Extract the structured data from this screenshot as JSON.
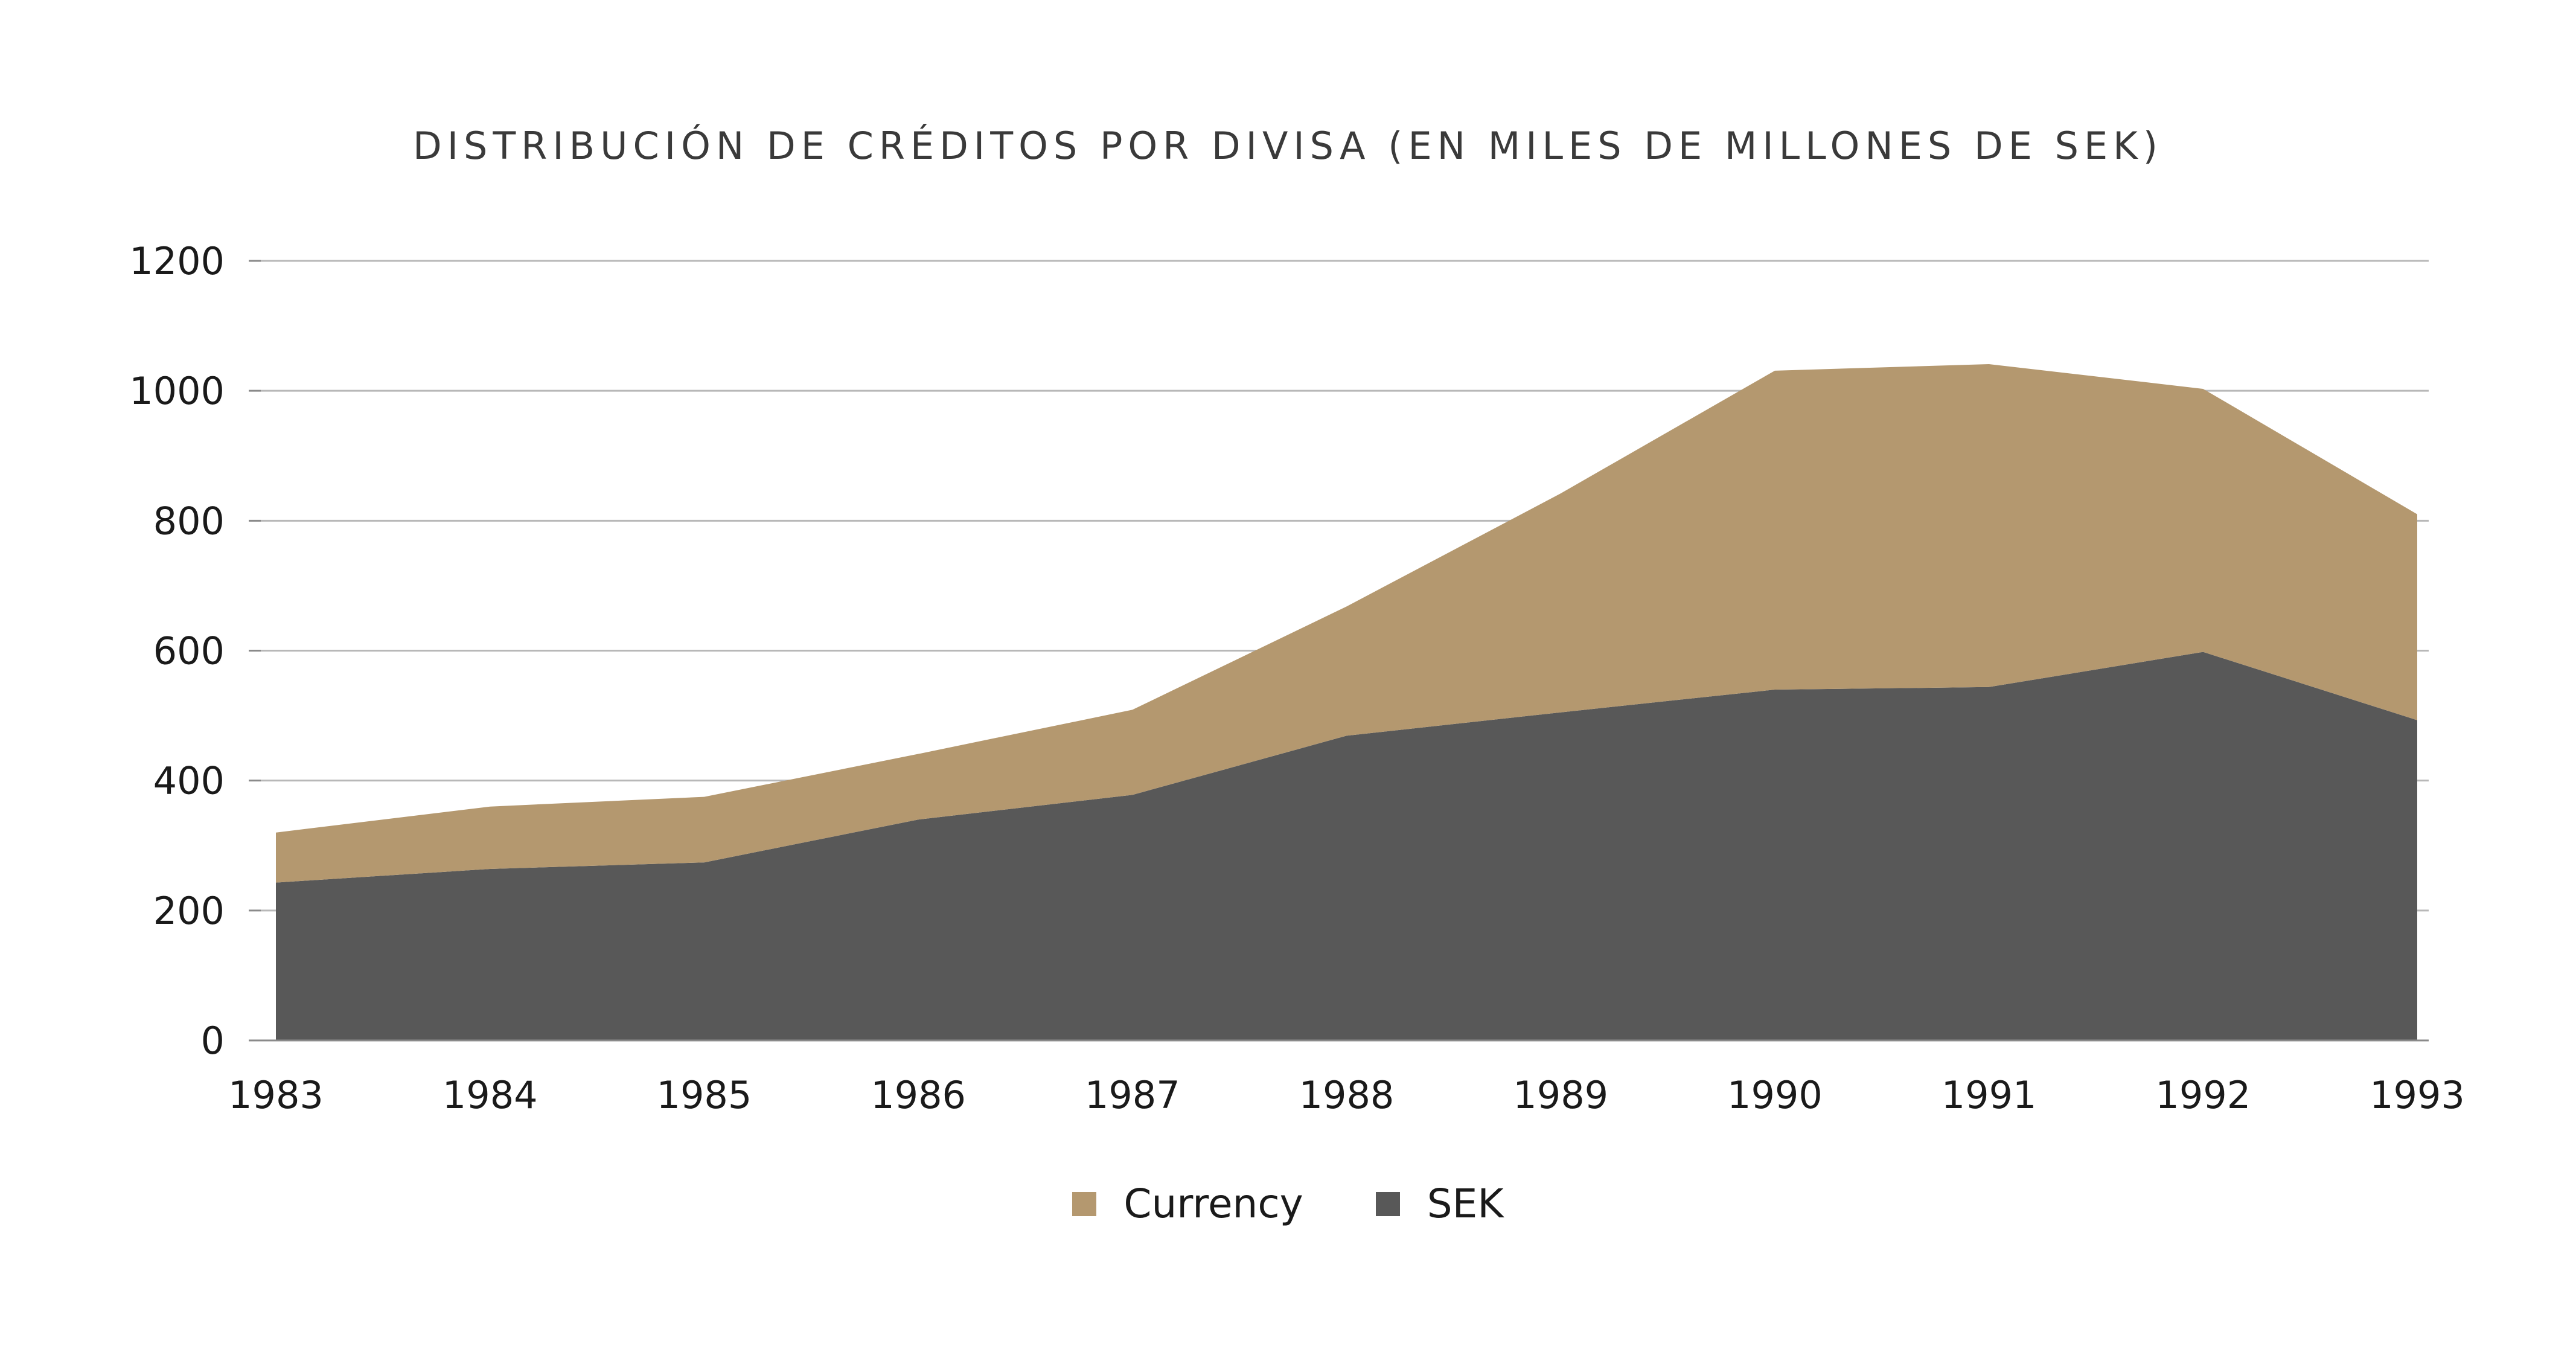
{
  "chart_data": {
    "type": "area",
    "stacked": true,
    "title": "DISTRIBUCIÓN DE CRÉDITOS POR DIVISA (EN MILES DE MILLONES DE SEK)",
    "xlabel": "",
    "ylabel": "",
    "x": [
      "1983",
      "1984",
      "1985",
      "1986",
      "1987",
      "1988",
      "1989",
      "1990",
      "1991",
      "1992",
      "1993"
    ],
    "ylim": [
      0,
      1200
    ],
    "yticks": [
      0,
      200,
      400,
      600,
      800,
      1000,
      1200
    ],
    "grid": true,
    "legend_position": "bottom",
    "series": [
      {
        "name": "SEK",
        "color": "#585858",
        "values": [
          243,
          264,
          274,
          340,
          378,
          469,
          505,
          540,
          544,
          598,
          493
        ]
      },
      {
        "name": "Currency",
        "color": "#b4986f",
        "values": [
          77,
          96,
          101,
          101,
          131,
          199,
          337,
          491,
          497,
          405,
          317
        ]
      }
    ]
  }
}
